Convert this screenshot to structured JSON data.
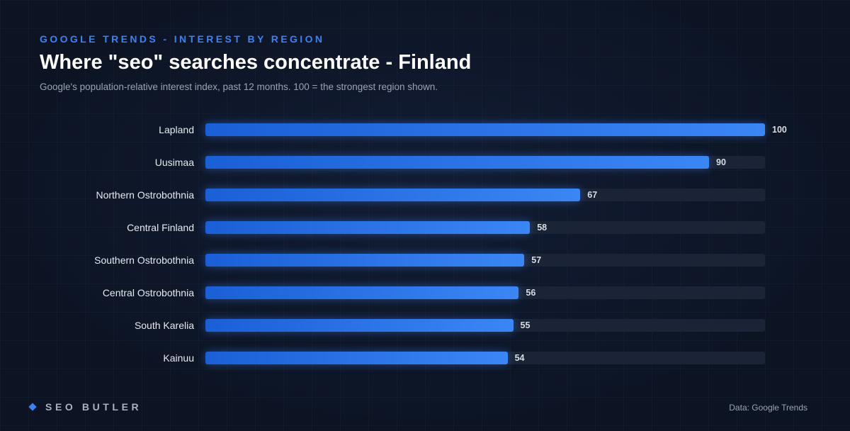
{
  "header": {
    "eyebrow": "GOOGLE TRENDS - INTEREST BY REGION",
    "title": "Where \"seo\" searches concentrate - Finland",
    "subtitle": "Google's population-relative interest index, past 12 months. 100 = the strongest region shown."
  },
  "chart_data": {
    "type": "bar",
    "orientation": "horizontal",
    "categories": [
      "Lapland",
      "Uusimaa",
      "Northern Ostrobothnia",
      "Central Finland",
      "Southern Ostrobothnia",
      "Central Ostrobothnia",
      "South Karelia",
      "Kainuu"
    ],
    "values": [
      100,
      90,
      67,
      58,
      57,
      56,
      55,
      54
    ],
    "xlim": [
      0,
      100
    ],
    "grid": false,
    "data_labels": true,
    "colors": {
      "bar": "#3b82f6",
      "track": "#1b2436"
    }
  },
  "footer": {
    "brand_icon": "diamond-icon",
    "brand": "SEO BUTLER",
    "source": "Data: Google Trends"
  },
  "colors": {
    "accent": "#3b82f6",
    "background": "#0c1424"
  }
}
